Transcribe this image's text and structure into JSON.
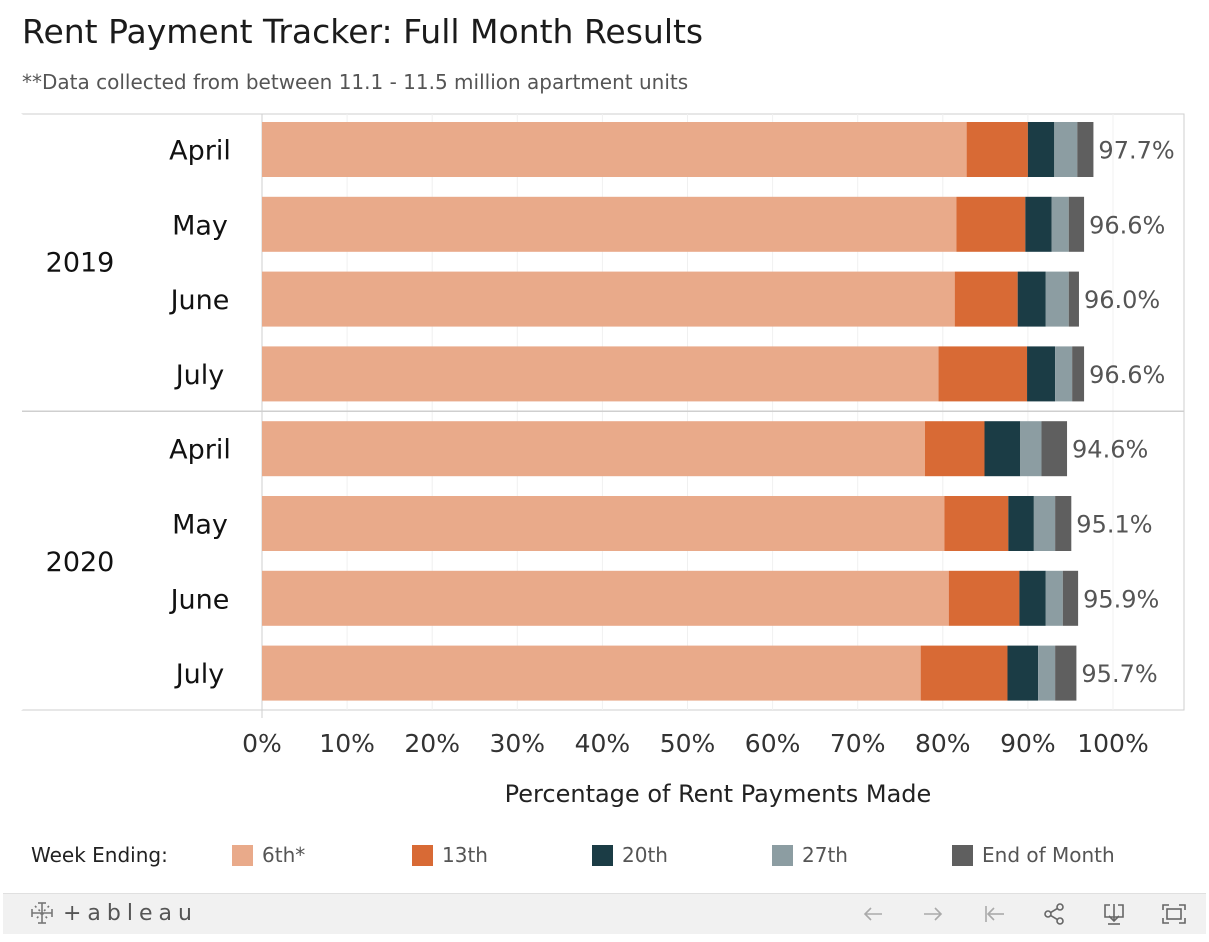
{
  "title": "Rent Payment Tracker: Full Month Results",
  "subtitle": "**Data collected from between 11.1 - 11.5 million apartment units",
  "legend": {
    "title": "Week Ending:",
    "items": [
      {
        "label": "6th*",
        "color": "#e9aa8a"
      },
      {
        "label": "13th",
        "color": "#d86a35"
      },
      {
        "label": "20th",
        "color": "#1b3c45"
      },
      {
        "label": "27th",
        "color": "#8c9da2"
      },
      {
        "label": "End of Month",
        "color": "#5f5f5f"
      }
    ]
  },
  "footer": {
    "brand": "+ableau",
    "tools": [
      "undo-icon",
      "redo-icon",
      "revert-icon",
      "share-icon",
      "download-icon",
      "fullscreen-icon"
    ]
  },
  "chart_data": {
    "type": "bar",
    "orientation": "horizontal",
    "stacked": true,
    "title": "Rent Payment Tracker: Full Month Results",
    "xlabel": "Percentage of Rent Payments Made",
    "xlim": [
      0,
      100
    ],
    "xticks": [
      "0%",
      "10%",
      "20%",
      "30%",
      "40%",
      "50%",
      "60%",
      "70%",
      "80%",
      "90%",
      "100%"
    ],
    "series_names": [
      "6th*",
      "13th",
      "20th",
      "27th",
      "End of Month"
    ],
    "groups": [
      {
        "year": "2019",
        "rows": [
          {
            "month": "April",
            "values": [
              82.8,
              7.2,
              3.1,
              2.7,
              1.9
            ],
            "total_label": "97.7%"
          },
          {
            "month": "May",
            "values": [
              81.6,
              8.1,
              3.1,
              2.0,
              1.8
            ],
            "total_label": "96.6%"
          },
          {
            "month": "June",
            "values": [
              81.4,
              7.4,
              3.3,
              2.7,
              1.2
            ],
            "total_label": "96.0%"
          },
          {
            "month": "July",
            "values": [
              79.5,
              10.4,
              3.3,
              2.0,
              1.4
            ],
            "total_label": "96.6%"
          }
        ]
      },
      {
        "year": "2020",
        "rows": [
          {
            "month": "April",
            "values": [
              77.9,
              7.0,
              4.2,
              2.5,
              3.0
            ],
            "total_label": "94.6%"
          },
          {
            "month": "May",
            "values": [
              80.2,
              7.5,
              3.0,
              2.5,
              1.9
            ],
            "total_label": "95.1%"
          },
          {
            "month": "June",
            "values": [
              80.7,
              8.3,
              3.1,
              2.0,
              1.8
            ],
            "total_label": "95.9%"
          },
          {
            "month": "July",
            "values": [
              77.4,
              10.2,
              3.6,
              2.0,
              2.5
            ],
            "total_label": "95.7%"
          }
        ]
      }
    ],
    "grid": true,
    "legend_position": "bottom"
  }
}
